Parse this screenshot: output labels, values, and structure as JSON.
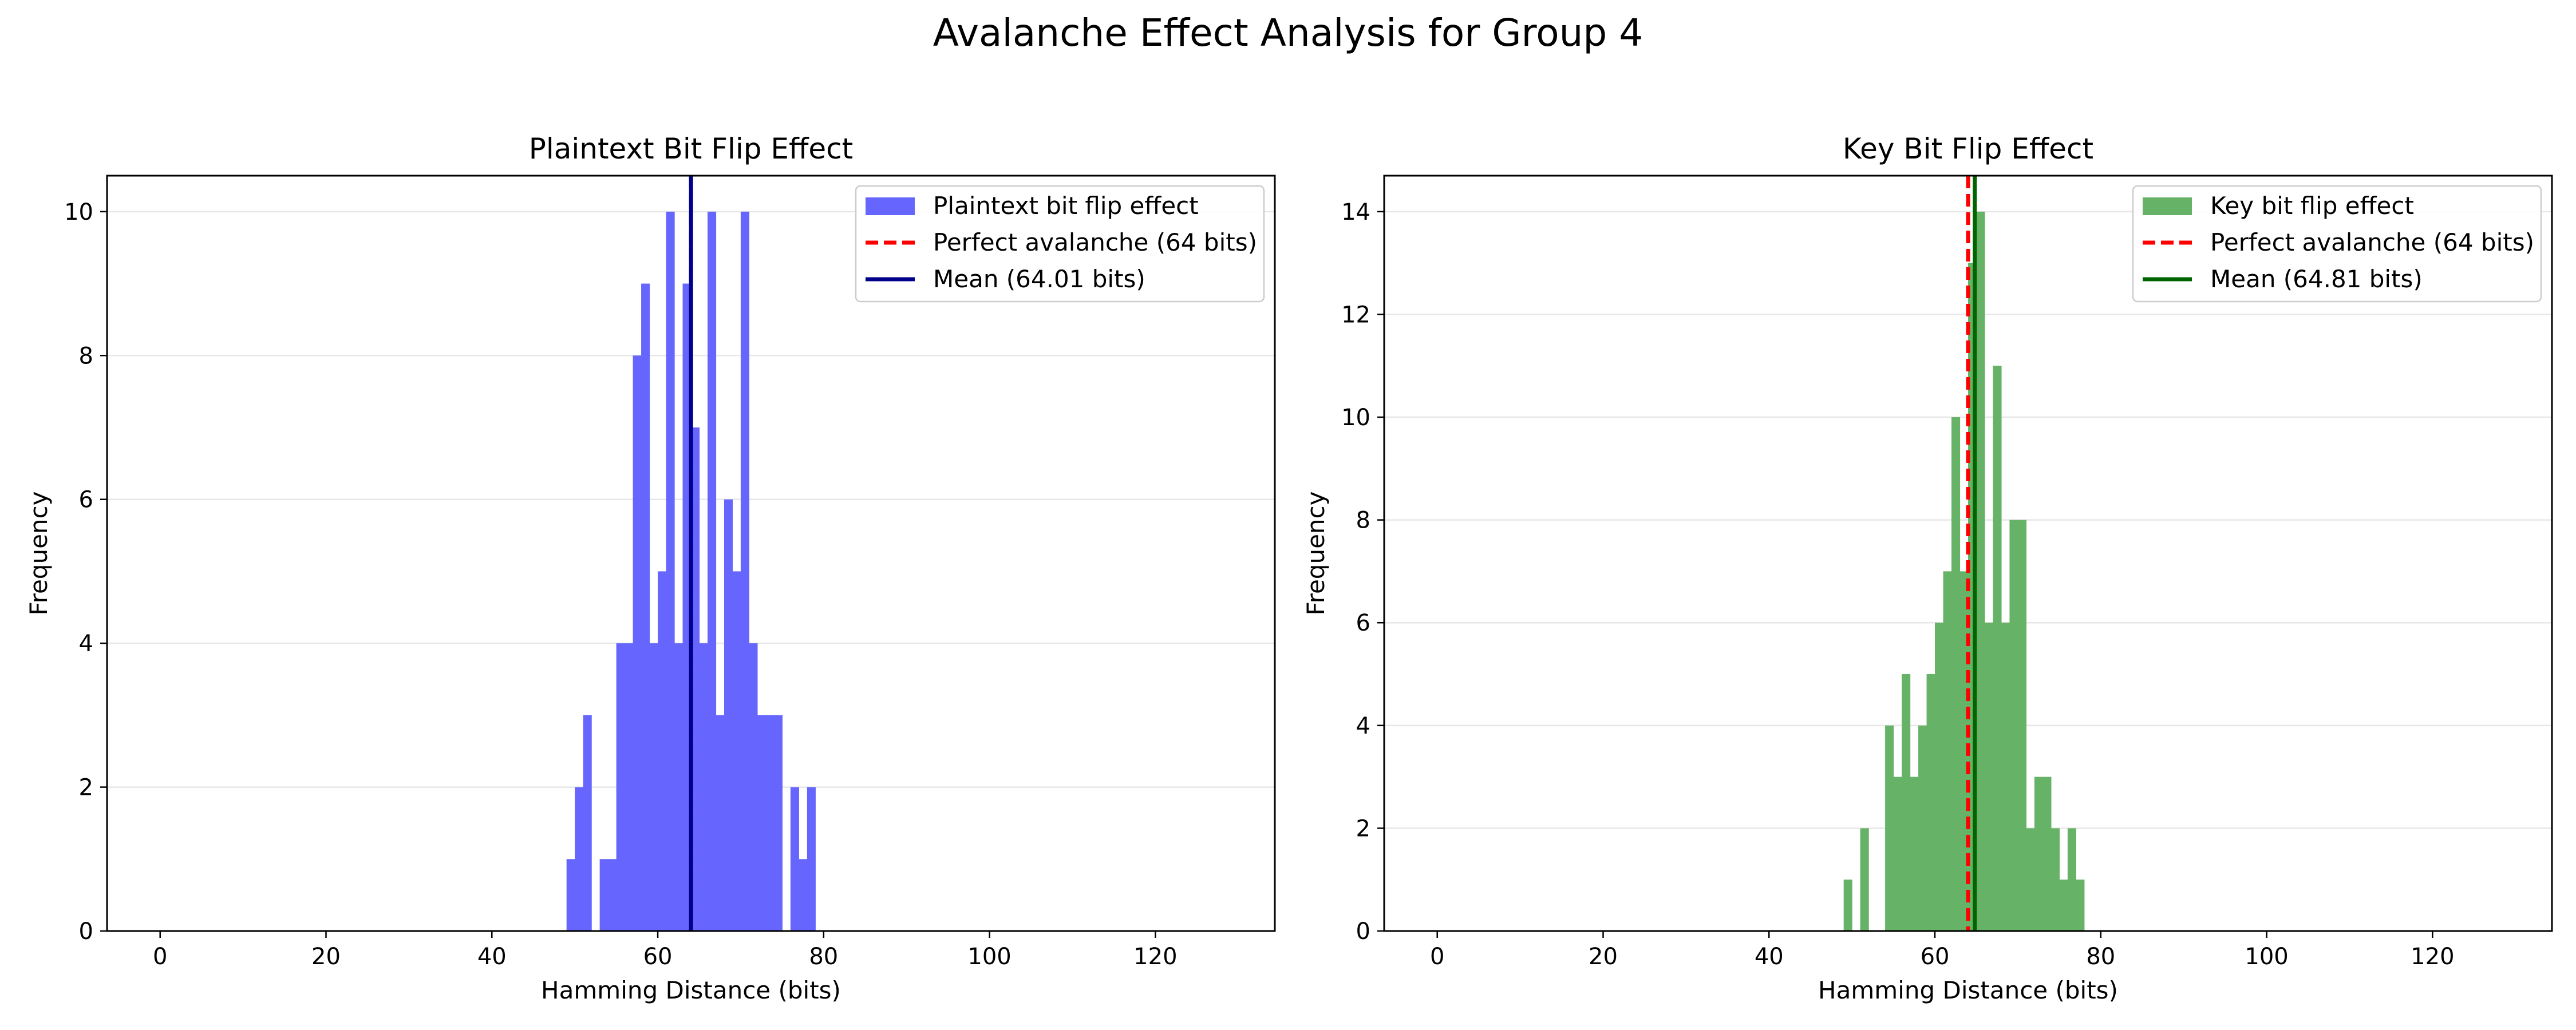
{
  "figure": {
    "suptitle": "Avalanche Effect Analysis for Group 4"
  },
  "chart_data": [
    {
      "type": "bar",
      "title": "Plaintext Bit Flip Effect",
      "xlabel": "Hamming Distance (bits)",
      "ylabel": "Frequency",
      "xlim": [
        -6.4,
        134.4
      ],
      "ylim": [
        0,
        10.5
      ],
      "xticks": [
        0,
        20,
        40,
        60,
        80,
        100,
        120
      ],
      "yticks": [
        0,
        2,
        4,
        6,
        8,
        10
      ],
      "grid": "y",
      "legend_position": "top-right",
      "bar_color": "#6666ff",
      "bin_width": 1,
      "bins": [
        {
          "x": 49.5,
          "count": 1
        },
        {
          "x": 50.5,
          "count": 2
        },
        {
          "x": 51.5,
          "count": 3
        },
        {
          "x": 53.5,
          "count": 1
        },
        {
          "x": 54.5,
          "count": 1
        },
        {
          "x": 55.5,
          "count": 4
        },
        {
          "x": 56.5,
          "count": 4
        },
        {
          "x": 57.5,
          "count": 8
        },
        {
          "x": 58.5,
          "count": 9
        },
        {
          "x": 59.5,
          "count": 4
        },
        {
          "x": 60.5,
          "count": 5
        },
        {
          "x": 61.5,
          "count": 10
        },
        {
          "x": 62.5,
          "count": 4
        },
        {
          "x": 63.5,
          "count": 9
        },
        {
          "x": 64.5,
          "count": 7
        },
        {
          "x": 65.5,
          "count": 4
        },
        {
          "x": 66.5,
          "count": 10
        },
        {
          "x": 67.5,
          "count": 3
        },
        {
          "x": 68.5,
          "count": 6
        },
        {
          "x": 69.5,
          "count": 5
        },
        {
          "x": 70.5,
          "count": 10
        },
        {
          "x": 71.5,
          "count": 4
        },
        {
          "x": 72.5,
          "count": 3
        },
        {
          "x": 73.5,
          "count": 3
        },
        {
          "x": 74.5,
          "count": 3
        },
        {
          "x": 76.5,
          "count": 2
        },
        {
          "x": 77.5,
          "count": 1
        },
        {
          "x": 78.5,
          "count": 2
        }
      ],
      "reference_line": {
        "x": 64,
        "color": "#ff0000",
        "style": "dashed",
        "label": "Perfect avalanche (64 bits)"
      },
      "mean_line": {
        "x": 64.01,
        "color": "#00008b",
        "style": "solid",
        "label": "Mean (64.01 bits)"
      },
      "legend": [
        {
          "kind": "patch",
          "color": "#6666ff",
          "label": "Plaintext bit flip effect"
        },
        {
          "kind": "dashed",
          "color": "#ff0000",
          "label": "Perfect avalanche (64 bits)"
        },
        {
          "kind": "solid",
          "color": "#00008b",
          "label": "Mean (64.01 bits)"
        }
      ]
    },
    {
      "type": "bar",
      "title": "Key Bit Flip Effect",
      "xlabel": "Hamming Distance (bits)",
      "ylabel": "Frequency",
      "xlim": [
        -6.4,
        134.4
      ],
      "ylim": [
        0,
        14.7
      ],
      "xticks": [
        0,
        20,
        40,
        60,
        80,
        100,
        120
      ],
      "yticks": [
        0,
        2,
        4,
        6,
        8,
        10,
        12,
        14
      ],
      "grid": "y",
      "legend_position": "top-right",
      "bar_color": "#66b266",
      "bin_width": 1,
      "bins": [
        {
          "x": 49.5,
          "count": 1
        },
        {
          "x": 51.5,
          "count": 2
        },
        {
          "x": 54.5,
          "count": 4
        },
        {
          "x": 55.5,
          "count": 3
        },
        {
          "x": 56.5,
          "count": 5
        },
        {
          "x": 57.5,
          "count": 3
        },
        {
          "x": 58.5,
          "count": 4
        },
        {
          "x": 59.5,
          "count": 5
        },
        {
          "x": 60.5,
          "count": 6
        },
        {
          "x": 61.5,
          "count": 7
        },
        {
          "x": 62.5,
          "count": 10
        },
        {
          "x": 63.5,
          "count": 7
        },
        {
          "x": 64.5,
          "count": 13
        },
        {
          "x": 65.5,
          "count": 14
        },
        {
          "x": 66.5,
          "count": 6
        },
        {
          "x": 67.5,
          "count": 11
        },
        {
          "x": 68.5,
          "count": 6
        },
        {
          "x": 69.5,
          "count": 8
        },
        {
          "x": 70.5,
          "count": 8
        },
        {
          "x": 71.5,
          "count": 2
        },
        {
          "x": 72.5,
          "count": 3
        },
        {
          "x": 73.5,
          "count": 3
        },
        {
          "x": 74.5,
          "count": 2
        },
        {
          "x": 75.5,
          "count": 1
        },
        {
          "x": 76.5,
          "count": 2
        },
        {
          "x": 77.5,
          "count": 1
        }
      ],
      "reference_line": {
        "x": 64,
        "color": "#ff0000",
        "style": "dashed",
        "label": "Perfect avalanche (64 bits)"
      },
      "mean_line": {
        "x": 64.81,
        "color": "#006400",
        "style": "solid",
        "label": "Mean (64.81 bits)"
      },
      "legend": [
        {
          "kind": "patch",
          "color": "#66b266",
          "label": "Key bit flip effect"
        },
        {
          "kind": "dashed",
          "color": "#ff0000",
          "label": "Perfect avalanche (64 bits)"
        },
        {
          "kind": "solid",
          "color": "#006400",
          "label": "Mean (64.81 bits)"
        }
      ]
    }
  ]
}
